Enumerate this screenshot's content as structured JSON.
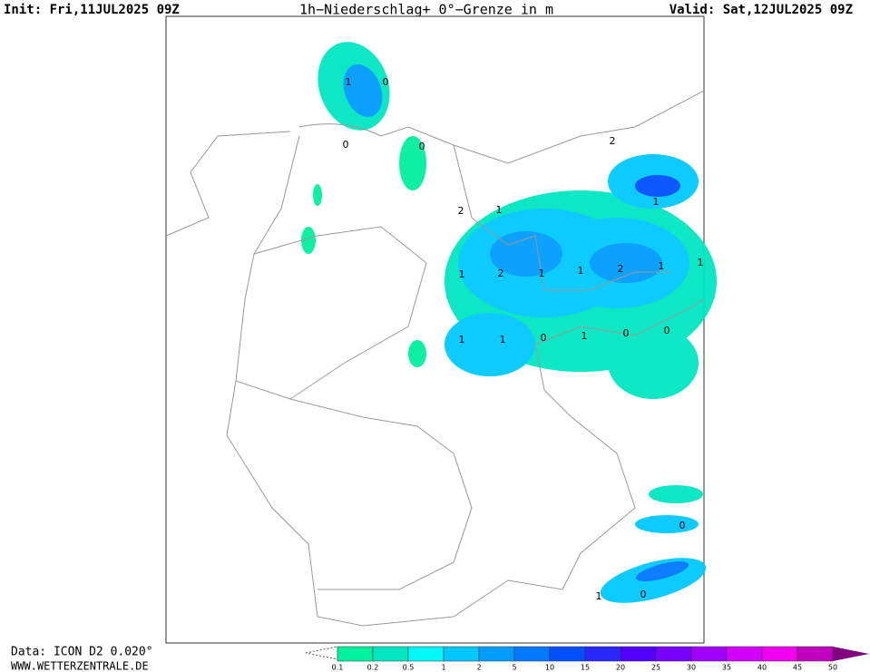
{
  "header": {
    "init": "Init: Fri,11JUL2025 09Z",
    "title": "1h−Niederschlag+ 0°−Grenze in m",
    "valid": "Valid: Sat,12JUL2025 09Z"
  },
  "map": {
    "labels": [
      "1",
      "0",
      "0",
      "0",
      "2",
      "2",
      "1",
      "1",
      "1",
      "2",
      "1",
      "1",
      "2",
      "1",
      "1",
      "1",
      "1",
      "0",
      "1",
      "0",
      "0",
      "0",
      "1",
      "0"
    ]
  },
  "legend": {
    "items": [
      {
        "label": "0.1",
        "color": "#00f0a0"
      },
      {
        "label": "0.2",
        "color": "#00e6c0"
      },
      {
        "label": "0.5",
        "color": "#00f8f8"
      },
      {
        "label": "1",
        "color": "#00c8ff"
      },
      {
        "label": "2",
        "color": "#009cff"
      },
      {
        "label": "5",
        "color": "#0078ff"
      },
      {
        "label": "10",
        "color": "#0050ff"
      },
      {
        "label": "15",
        "color": "#2828ff"
      },
      {
        "label": "20",
        "color": "#5000ff"
      },
      {
        "label": "25",
        "color": "#7800ff"
      },
      {
        "label": "30",
        "color": "#a000ff"
      },
      {
        "label": "35",
        "color": "#d200ff"
      },
      {
        "label": "40",
        "color": "#f000f0"
      },
      {
        "label": "45",
        "color": "#c000c0"
      },
      {
        "label": "50",
        "color": "#800080"
      }
    ]
  },
  "footer": {
    "data": "Data: ICON D2 0.020°",
    "site": "WWW.WETTERZENTRALE.DE"
  }
}
